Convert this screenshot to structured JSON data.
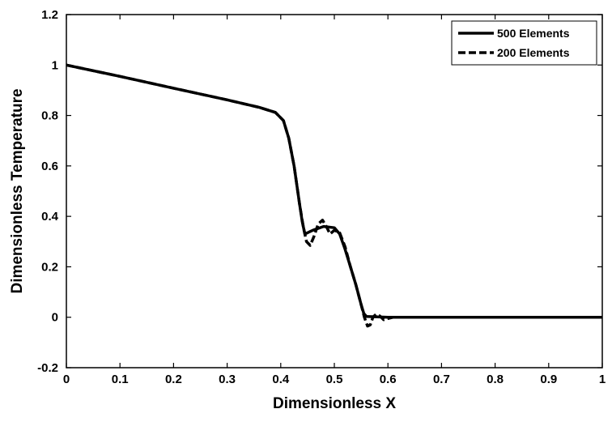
{
  "chart_data": {
    "type": "line",
    "xlabel": "Dimensionless X",
    "ylabel": "Dimensionless Temperature",
    "xlim": [
      0,
      1
    ],
    "ylim": [
      -0.2,
      1.2
    ],
    "xticks": [
      0,
      0.1,
      0.2,
      0.3,
      0.4,
      0.5,
      0.6,
      0.7,
      0.8,
      0.9,
      1
    ],
    "xtick_labels": [
      "0",
      "0.1",
      "0.2",
      "0.3",
      "0.4",
      "0.5",
      "0.6",
      "0.7",
      "0.8",
      "0.9",
      "1"
    ],
    "yticks": [
      -0.2,
      0,
      0.2,
      0.4,
      0.6,
      0.8,
      1,
      1.2
    ],
    "ytick_labels": [
      "-0.2",
      "0",
      "0.2",
      "0.4",
      "0.6",
      "0.8",
      "1",
      "1.2"
    ],
    "grid": false,
    "legend_position": "top-right",
    "series": [
      {
        "name": "500 Elements",
        "style": "solid",
        "color": "#000000",
        "x": [
          0,
          0.1,
          0.2,
          0.3,
          0.36,
          0.39,
          0.405,
          0.415,
          0.425,
          0.435,
          0.44,
          0.445,
          0.46,
          0.48,
          0.5,
          0.51,
          0.52,
          0.53,
          0.54,
          0.55,
          0.555,
          0.56,
          0.6,
          0.7,
          0.8,
          0.9,
          1.0
        ],
        "y": [
          1.0,
          0.955,
          0.908,
          0.862,
          0.832,
          0.812,
          0.78,
          0.71,
          0.6,
          0.45,
          0.38,
          0.33,
          0.345,
          0.36,
          0.355,
          0.33,
          0.27,
          0.2,
          0.13,
          0.05,
          0.015,
          0.003,
          0,
          0,
          0,
          0,
          0
        ]
      },
      {
        "name": "200 Elements",
        "style": "dashed",
        "color": "#000000",
        "x": [
          0,
          0.1,
          0.2,
          0.3,
          0.36,
          0.39,
          0.405,
          0.415,
          0.425,
          0.435,
          0.442,
          0.448,
          0.455,
          0.462,
          0.47,
          0.478,
          0.485,
          0.492,
          0.5,
          0.51,
          0.52,
          0.53,
          0.54,
          0.55,
          0.556,
          0.562,
          0.567,
          0.572,
          0.578,
          0.585,
          0.592,
          0.6,
          0.61,
          0.7,
          0.8,
          0.9,
          1.0
        ],
        "y": [
          1.0,
          0.955,
          0.908,
          0.862,
          0.832,
          0.812,
          0.78,
          0.71,
          0.6,
          0.45,
          0.36,
          0.3,
          0.285,
          0.32,
          0.37,
          0.385,
          0.36,
          0.33,
          0.345,
          0.335,
          0.28,
          0.2,
          0.13,
          0.05,
          0.0,
          -0.035,
          -0.03,
          0.0,
          0.012,
          0.005,
          -0.01,
          -0.005,
          0,
          0,
          0,
          0,
          0
        ]
      }
    ]
  }
}
